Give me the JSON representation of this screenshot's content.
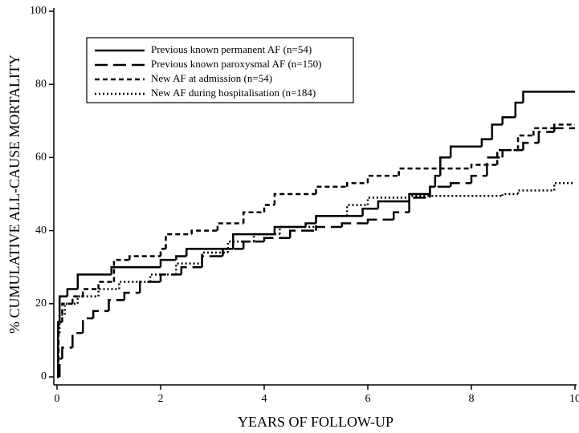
{
  "chart_data": {
    "type": "step",
    "x_label": "YEARS OF FOLLOW-UP",
    "y_label": "% CUMULATIVE ALL-CAUSE MORTALITY",
    "xlim": [
      0,
      10
    ],
    "xticks": [
      0,
      2,
      4,
      6,
      8,
      10
    ],
    "ylim": [
      0,
      100
    ],
    "yticks": [
      0,
      20,
      40,
      60,
      80,
      100
    ],
    "series": [
      {
        "name": "Previous known permanent AF (n=54)",
        "color": "#000000",
        "line_style": "solid",
        "x": [
          0,
          0.02,
          0.05,
          0.2,
          0.4,
          1.05,
          2,
          2.3,
          2.5,
          3.4,
          4.2,
          4.8,
          5.0,
          5.9,
          6.2,
          6.8,
          7.2,
          7.3,
          7.4,
          7.6,
          8.2,
          8.4,
          8.6,
          8.85,
          9.0,
          10
        ],
        "values": [
          0,
          15,
          22,
          24,
          28,
          30,
          32,
          33,
          35,
          39,
          41,
          42,
          44,
          46,
          48,
          50,
          52,
          55,
          60,
          63,
          65,
          69,
          71,
          75,
          78,
          78
        ]
      },
      {
        "name": "Previous known paroxysmal AF (n=150)",
        "color": "#000000",
        "line_style": "long",
        "x": [
          0,
          0.05,
          0.1,
          0.3,
          0.5,
          0.7,
          1.0,
          1.3,
          1.6,
          2.0,
          2.4,
          2.8,
          3.2,
          3.6,
          4.0,
          4.5,
          5.0,
          5.5,
          6.0,
          6.5,
          6.8,
          7.2,
          7.6,
          8.0,
          8.3,
          8.6,
          9.0,
          9.3,
          9.6,
          10
        ],
        "values": [
          0,
          5,
          8,
          12,
          16,
          18,
          21,
          23,
          26,
          28,
          30,
          33,
          35,
          37,
          38,
          40,
          41,
          42,
          43,
          45,
          49,
          52,
          53,
          55,
          60,
          62,
          64,
          67,
          68,
          68
        ]
      },
      {
        "name": "New AF at admission (n=54)",
        "color": "#000000",
        "line_style": "short",
        "x": [
          0,
          0.03,
          0.1,
          0.3,
          0.5,
          0.8,
          1.1,
          1.4,
          2.0,
          2.1,
          2.6,
          3.1,
          3.6,
          4.0,
          4.2,
          5.0,
          5.6,
          6.0,
          6.6,
          8.0,
          8.5,
          8.9,
          9.2,
          9.6,
          10
        ],
        "values": [
          0,
          15,
          20,
          22,
          24,
          26,
          32,
          33,
          35,
          39,
          40,
          42,
          45,
          47,
          50,
          52,
          53,
          55,
          57,
          58,
          62,
          66,
          68,
          69,
          69
        ]
      },
      {
        "name": "New AF during hospitalisation (n=184)",
        "color": "#000000",
        "line_style": "dotted",
        "x": [
          0,
          0.02,
          0.05,
          0.15,
          0.4,
          0.8,
          1.2,
          1.8,
          2.3,
          2.8,
          3.3,
          3.8,
          4.3,
          5.0,
          5.6,
          6.0,
          6.8,
          8.6,
          8.9,
          9.6,
          10
        ],
        "values": [
          0,
          12,
          17,
          20,
          22,
          24,
          26,
          28,
          31,
          34,
          37,
          39,
          41,
          44,
          47,
          49,
          49.5,
          50,
          51,
          53,
          53
        ]
      }
    ]
  }
}
